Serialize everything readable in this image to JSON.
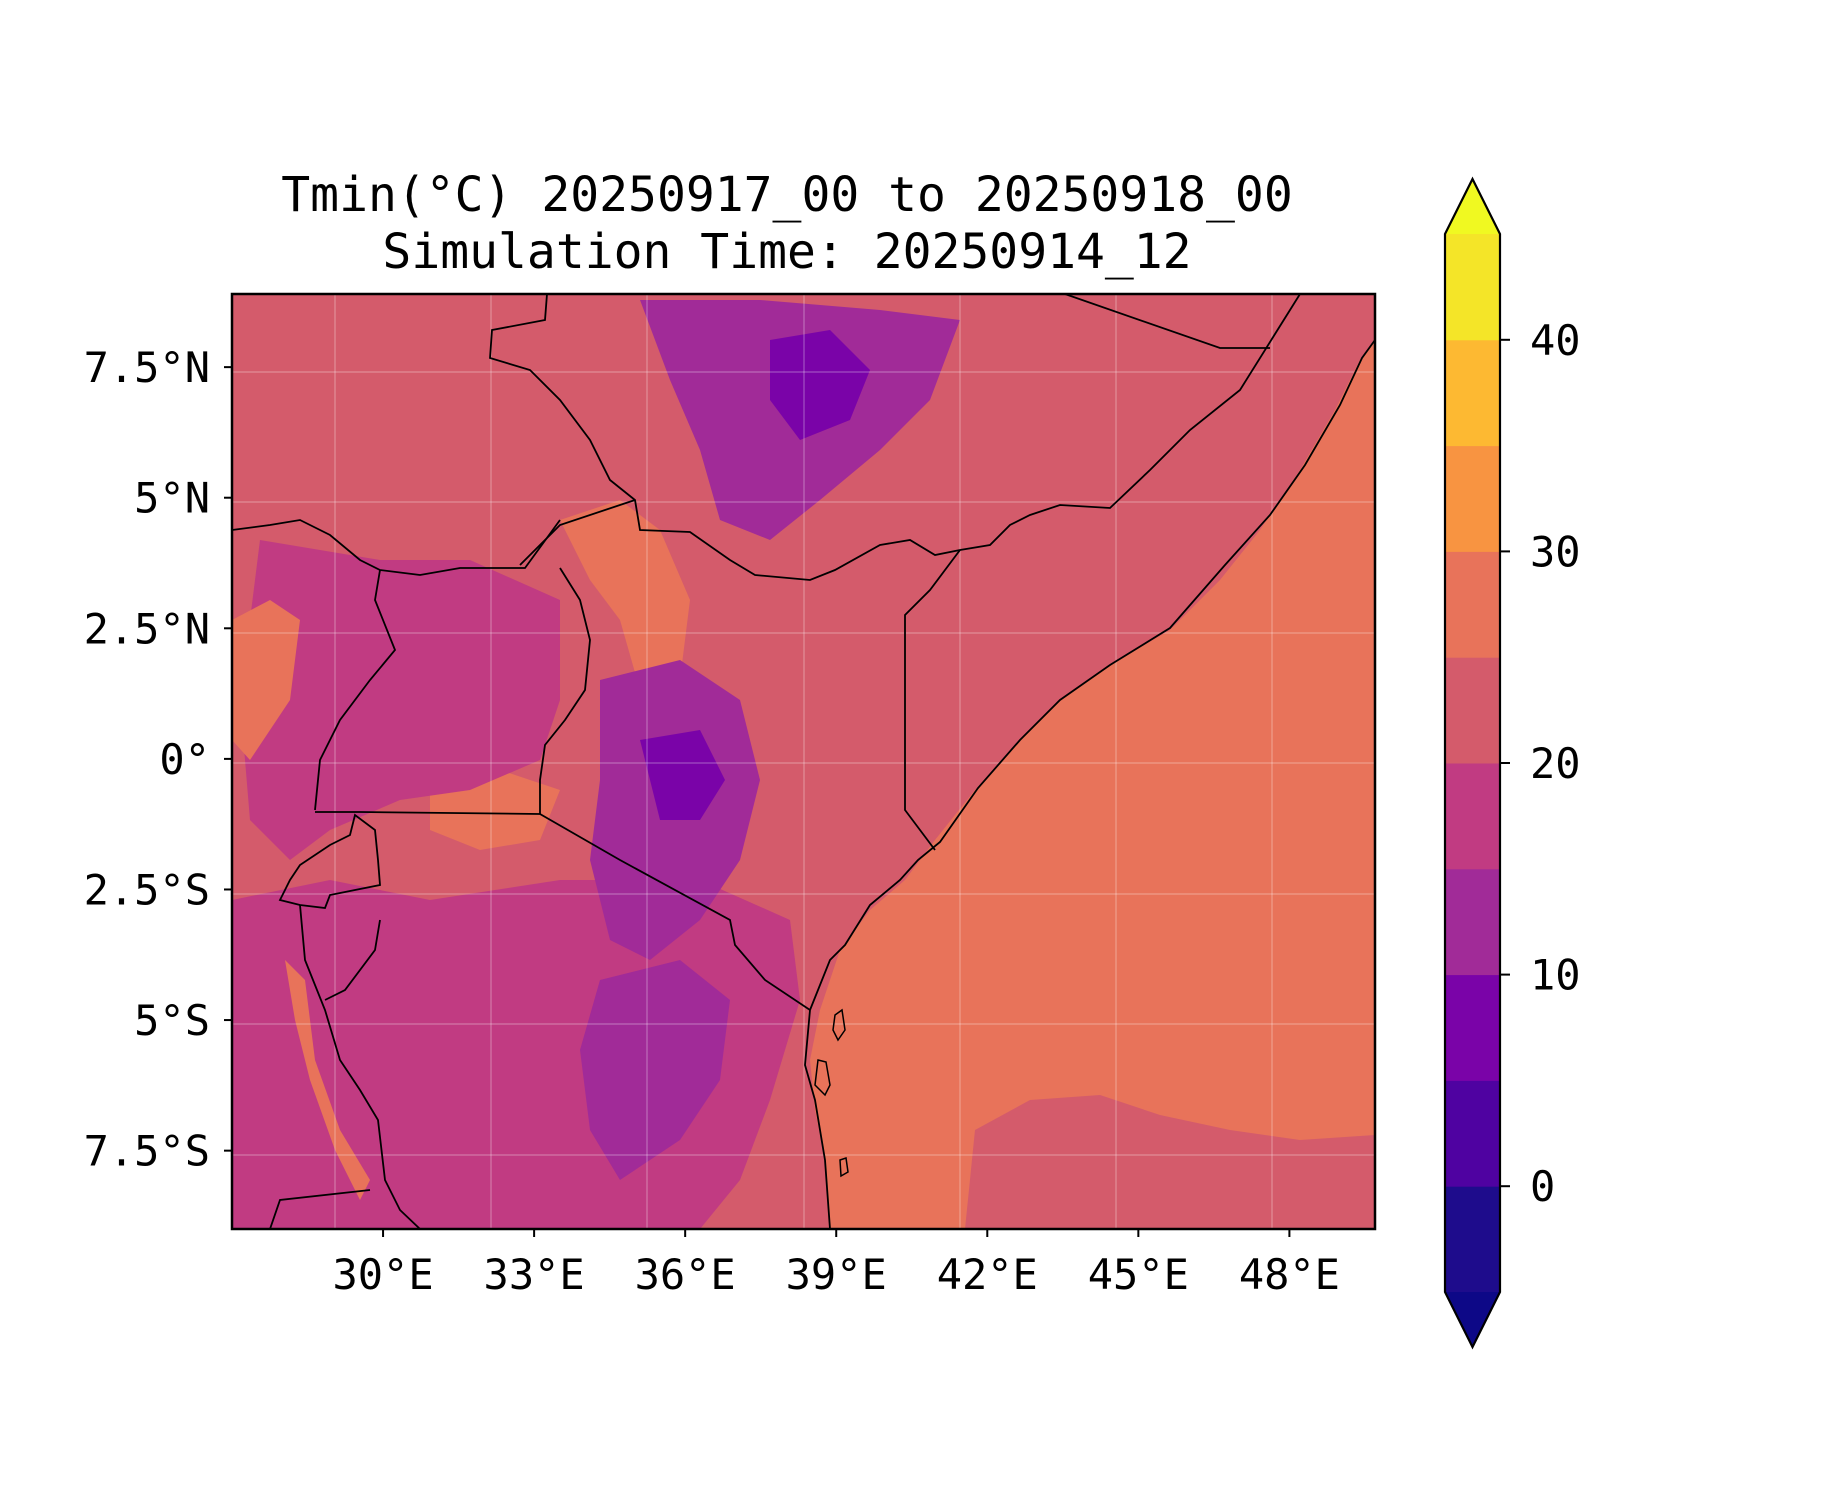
{
  "title": {
    "line1": "Tmin(°C) 20250917_00 to 20250918_00",
    "line2": "Simulation Time: 20250914_12"
  },
  "map": {
    "lon_range": [
      27.0,
      49.7
    ],
    "lat_range": [
      -9.0,
      8.9
    ],
    "x_ticks": [
      {
        "value": 30,
        "label": "30°E"
      },
      {
        "value": 33,
        "label": "33°E"
      },
      {
        "value": 36,
        "label": "36°E"
      },
      {
        "value": 39,
        "label": "39°E"
      },
      {
        "value": 42,
        "label": "42°E"
      },
      {
        "value": 45,
        "label": "45°E"
      },
      {
        "value": 48,
        "label": "48°E"
      }
    ],
    "y_ticks": [
      {
        "value": 7.5,
        "label": "7.5°N"
      },
      {
        "value": 5,
        "label": "5°N"
      },
      {
        "value": 2.5,
        "label": "2.5°N"
      },
      {
        "value": 0,
        "label": "0°"
      },
      {
        "value": -2.5,
        "label": "2.5°S"
      },
      {
        "value": -5,
        "label": "5°S"
      },
      {
        "value": -7.5,
        "label": "7.5°S"
      }
    ],
    "gridlines": true
  },
  "colorbar": {
    "levels": [
      -5,
      0,
      5,
      10,
      15,
      20,
      25,
      30,
      35,
      40,
      45
    ],
    "colors": [
      "#1e0c8c",
      "#4f02a1",
      "#7a03a8",
      "#a12b98",
      "#c13b82",
      "#d45b6b",
      "#e8735a",
      "#f89441",
      "#fdb932",
      "#f4e528"
    ],
    "under_color": "#0d0887",
    "over_color": "#f0f921",
    "ticks": [
      {
        "value": 0,
        "label": "0"
      },
      {
        "value": 10,
        "label": "10"
      },
      {
        "value": 20,
        "label": "20"
      },
      {
        "value": 30,
        "label": "30"
      },
      {
        "value": 40,
        "label": "40"
      }
    ]
  }
}
